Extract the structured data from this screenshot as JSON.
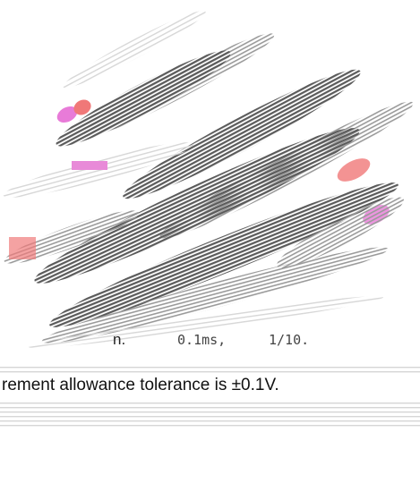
{
  "lines": [
    [
      "n.",
      "0.1ms,",
      "1/10."
    ],
    [
      "rement allowance tolerance is ±0.1V."
    ]
  ]
}
